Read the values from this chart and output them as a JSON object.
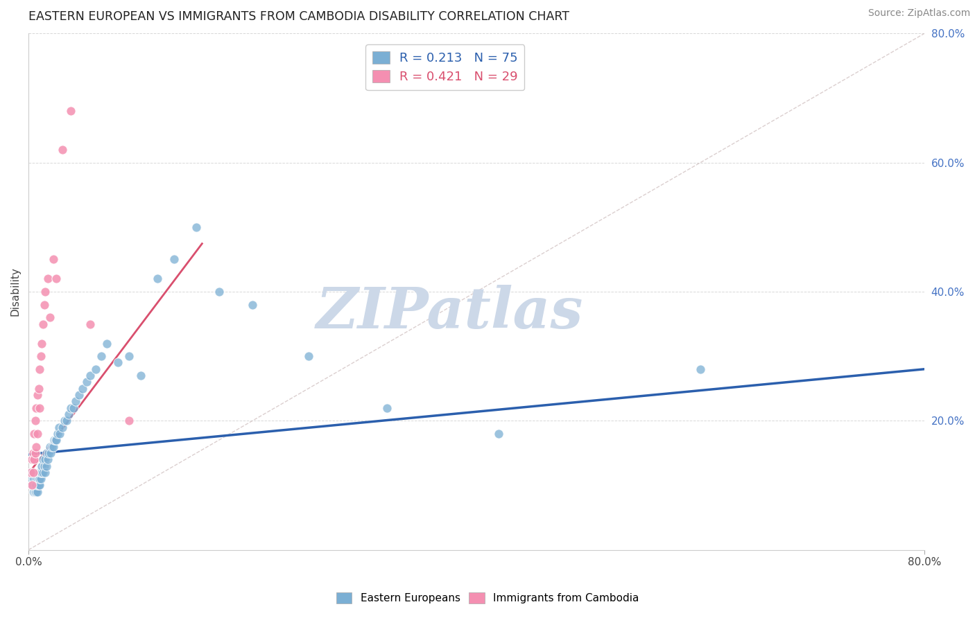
{
  "title": "EASTERN EUROPEAN VS IMMIGRANTS FROM CAMBODIA DISABILITY CORRELATION CHART",
  "source_text": "Source: ZipAtlas.com",
  "ylabel": "Disability",
  "watermark": "ZIPatlas",
  "xlim": [
    0.0,
    0.8
  ],
  "ylim": [
    0.0,
    0.8
  ],
  "legend_r_blue": "R = 0.213",
  "legend_n_blue": "N = 75",
  "legend_r_pink": "R = 0.421",
  "legend_n_pink": "N = 29",
  "eastern_european_x": [
    0.002,
    0.003,
    0.003,
    0.004,
    0.004,
    0.004,
    0.005,
    0.005,
    0.005,
    0.005,
    0.006,
    0.006,
    0.006,
    0.007,
    0.007,
    0.007,
    0.007,
    0.008,
    0.008,
    0.008,
    0.009,
    0.009,
    0.009,
    0.01,
    0.01,
    0.01,
    0.011,
    0.011,
    0.012,
    0.012,
    0.013,
    0.013,
    0.014,
    0.015,
    0.015,
    0.016,
    0.016,
    0.017,
    0.018,
    0.019,
    0.02,
    0.021,
    0.022,
    0.023,
    0.024,
    0.025,
    0.026,
    0.027,
    0.028,
    0.03,
    0.032,
    0.034,
    0.036,
    0.038,
    0.04,
    0.042,
    0.045,
    0.048,
    0.052,
    0.055,
    0.06,
    0.065,
    0.07,
    0.08,
    0.09,
    0.1,
    0.115,
    0.13,
    0.15,
    0.17,
    0.2,
    0.25,
    0.32,
    0.42,
    0.6
  ],
  "eastern_european_y": [
    0.12,
    0.1,
    0.11,
    0.09,
    0.1,
    0.11,
    0.09,
    0.1,
    0.1,
    0.11,
    0.09,
    0.1,
    0.1,
    0.09,
    0.1,
    0.1,
    0.11,
    0.09,
    0.1,
    0.11,
    0.1,
    0.11,
    0.12,
    0.1,
    0.11,
    0.12,
    0.11,
    0.12,
    0.12,
    0.13,
    0.12,
    0.14,
    0.13,
    0.12,
    0.14,
    0.13,
    0.15,
    0.14,
    0.15,
    0.16,
    0.15,
    0.16,
    0.16,
    0.17,
    0.17,
    0.17,
    0.18,
    0.19,
    0.18,
    0.19,
    0.2,
    0.2,
    0.21,
    0.22,
    0.22,
    0.23,
    0.24,
    0.25,
    0.26,
    0.27,
    0.28,
    0.3,
    0.32,
    0.29,
    0.3,
    0.27,
    0.42,
    0.45,
    0.5,
    0.4,
    0.38,
    0.3,
    0.22,
    0.18,
    0.28
  ],
  "cambodia_x": [
    0.002,
    0.003,
    0.003,
    0.004,
    0.004,
    0.005,
    0.005,
    0.006,
    0.006,
    0.007,
    0.007,
    0.008,
    0.008,
    0.009,
    0.01,
    0.01,
    0.011,
    0.012,
    0.013,
    0.014,
    0.015,
    0.017,
    0.019,
    0.022,
    0.025,
    0.03,
    0.038,
    0.055,
    0.09
  ],
  "cambodia_y": [
    0.12,
    0.1,
    0.14,
    0.12,
    0.15,
    0.14,
    0.18,
    0.15,
    0.2,
    0.16,
    0.22,
    0.18,
    0.24,
    0.25,
    0.22,
    0.28,
    0.3,
    0.32,
    0.35,
    0.38,
    0.4,
    0.42,
    0.36,
    0.45,
    0.42,
    0.62,
    0.68,
    0.35,
    0.2
  ],
  "blue_scatter_color": "#7bafd4",
  "pink_scatter_color": "#f48fb1",
  "blue_line_color": "#2b5fad",
  "pink_line_color": "#d94f6e",
  "diagonal_color": "#ccbbbb",
  "grid_color": "#d8d8d8",
  "title_color": "#222222",
  "right_axis_color": "#4472c4",
  "source_color": "#888888",
  "watermark_color": "#ccd8e8"
}
